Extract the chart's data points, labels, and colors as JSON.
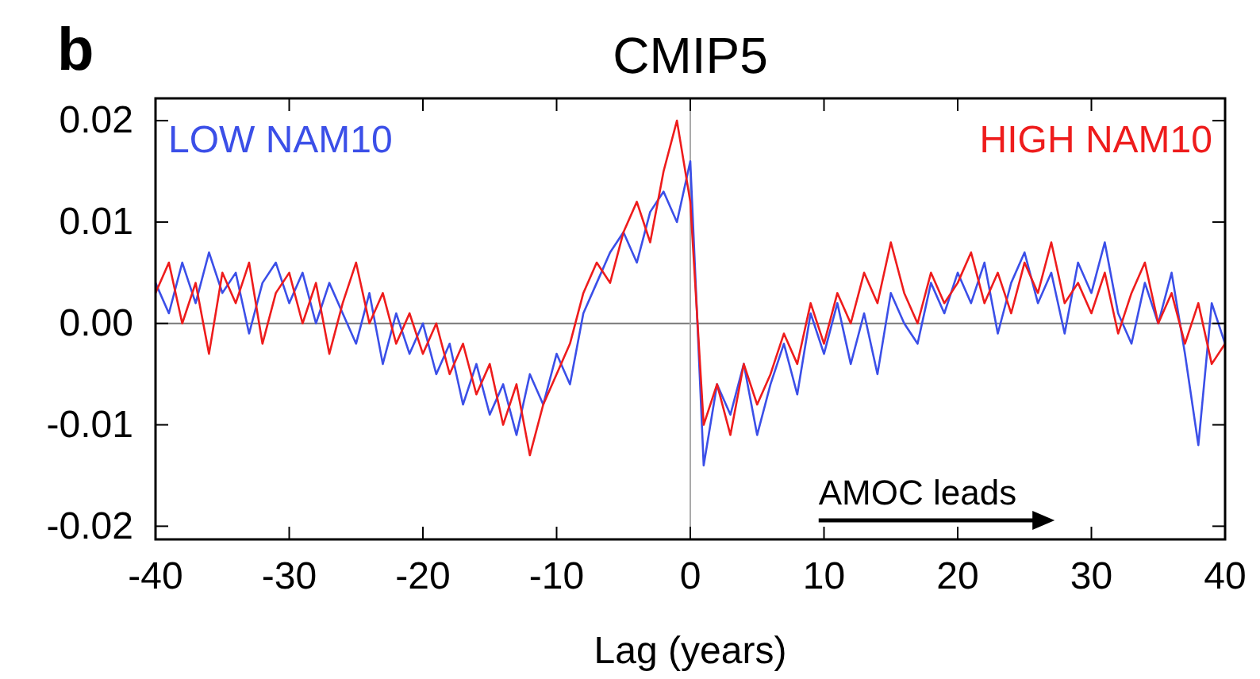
{
  "chart_data": {
    "type": "line",
    "title": "CMIP5",
    "xlabel": "Lag (years)",
    "annotations": [
      "b",
      "AMOC leads"
    ],
    "x": [
      -40,
      -39,
      -38,
      -37,
      -36,
      -35,
      -34,
      -33,
      -32,
      -31,
      -30,
      -29,
      -28,
      -27,
      -26,
      -25,
      -24,
      -23,
      -22,
      -21,
      -20,
      -19,
      -18,
      -17,
      -16,
      -15,
      -14,
      -13,
      -12,
      -11,
      -10,
      -9,
      -8,
      -7,
      -6,
      -5,
      -4,
      -3,
      -2,
      -1,
      0,
      1,
      2,
      3,
      4,
      5,
      6,
      7,
      8,
      9,
      10,
      11,
      12,
      13,
      14,
      15,
      16,
      17,
      18,
      19,
      20,
      21,
      22,
      23,
      24,
      25,
      26,
      27,
      28,
      29,
      30,
      31,
      32,
      33,
      34,
      35,
      36,
      37,
      38,
      39,
      40
    ],
    "series": [
      {
        "name": "LOW NAM10",
        "color": "#3b4fe8",
        "values": [
          0.004,
          0.001,
          0.006,
          0.002,
          0.007,
          0.003,
          0.005,
          -0.001,
          0.004,
          0.006,
          0.002,
          0.005,
          0.0,
          0.004,
          0.001,
          -0.002,
          0.003,
          -0.004,
          0.001,
          -0.003,
          0.0,
          -0.005,
          -0.002,
          -0.008,
          -0.004,
          -0.009,
          -0.006,
          -0.011,
          -0.005,
          -0.008,
          -0.003,
          -0.006,
          0.001,
          0.004,
          0.007,
          0.009,
          0.006,
          0.011,
          0.013,
          0.01,
          0.016,
          -0.014,
          -0.006,
          -0.009,
          -0.004,
          -0.011,
          -0.006,
          -0.002,
          -0.007,
          0.001,
          -0.003,
          0.002,
          -0.004,
          0.001,
          -0.005,
          0.003,
          0.0,
          -0.002,
          0.004,
          0.001,
          0.005,
          0.002,
          0.006,
          -0.001,
          0.004,
          0.007,
          0.002,
          0.005,
          -0.001,
          0.006,
          0.003,
          0.008,
          0.001,
          -0.002,
          0.004,
          0.0,
          0.005,
          -0.003,
          -0.012,
          0.002,
          -0.002
        ]
      },
      {
        "name": "HIGH NAM10",
        "color": "#ee1c1c",
        "values": [
          0.003,
          0.006,
          0.0,
          0.004,
          -0.003,
          0.005,
          0.002,
          0.006,
          -0.002,
          0.003,
          0.005,
          0.0,
          0.004,
          -0.003,
          0.002,
          0.006,
          0.0,
          0.003,
          -0.002,
          0.001,
          -0.003,
          0.0,
          -0.005,
          -0.002,
          -0.007,
          -0.004,
          -0.01,
          -0.006,
          -0.013,
          -0.008,
          -0.005,
          -0.002,
          0.003,
          0.006,
          0.004,
          0.009,
          0.012,
          0.008,
          0.015,
          0.02,
          0.012,
          -0.01,
          -0.006,
          -0.011,
          -0.004,
          -0.008,
          -0.005,
          -0.001,
          -0.004,
          0.002,
          -0.002,
          0.003,
          0.0,
          0.005,
          0.002,
          0.008,
          0.003,
          0.0,
          0.005,
          0.002,
          0.004,
          0.007,
          0.002,
          0.005,
          0.001,
          0.006,
          0.003,
          0.008,
          0.002,
          0.004,
          0.001,
          0.005,
          -0.001,
          0.003,
          0.006,
          0.0,
          0.003,
          -0.002,
          0.002,
          -0.004,
          -0.002
        ]
      }
    ],
    "xlim": [
      -40,
      40
    ],
    "xticks": [
      -40,
      -30,
      -20,
      -10,
      0,
      10,
      20,
      30,
      40
    ],
    "ylim": [
      -0.0213,
      0.0222
    ],
    "yticks": [
      {
        "value": -0.02,
        "label": "-0.02"
      },
      {
        "value": -0.01,
        "label": "-0.01"
      },
      {
        "value": 0,
        "label": "0.00"
      },
      {
        "value": 0.01,
        "label": "0.01"
      },
      {
        "value": 0.02,
        "label": "0.02"
      }
    ],
    "ref_lines": [
      {
        "axis": "y",
        "value": 0,
        "color": "#777777"
      },
      {
        "axis": "x",
        "value": 0,
        "color": "#aaaaaa"
      }
    ],
    "line_style": "solid"
  }
}
